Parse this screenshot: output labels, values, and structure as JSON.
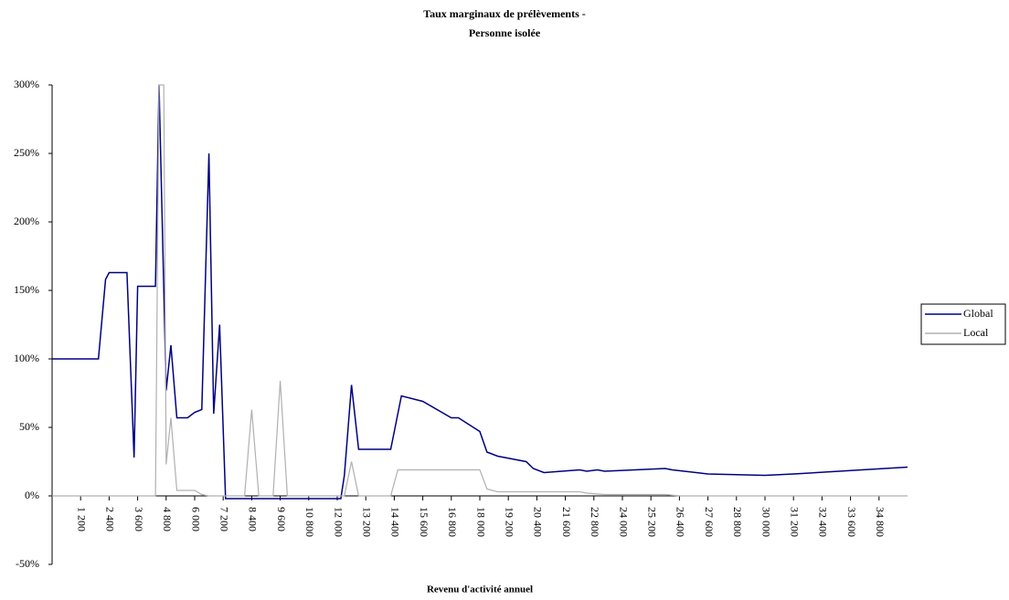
{
  "chart_data": {
    "type": "line",
    "title": "Taux marginaux de prélèvements -",
    "subtitle": "Personne isolée",
    "x_label": "Revenu d'activité annuel",
    "xlim": [
      0,
      36000
    ],
    "ylim": [
      -50,
      300
    ],
    "xticks": [
      {
        "value": 1200,
        "label": "1 200"
      },
      {
        "value": 2400,
        "label": "2 400"
      },
      {
        "value": 3600,
        "label": "3 600"
      },
      {
        "value": 4800,
        "label": "4 800"
      },
      {
        "value": 6000,
        "label": "6 000"
      },
      {
        "value": 7200,
        "label": "7 200"
      },
      {
        "value": 8400,
        "label": "8 400"
      },
      {
        "value": 9600,
        "label": "9 600"
      },
      {
        "value": 10800,
        "label": "10 800"
      },
      {
        "value": 12000,
        "label": "12 000"
      },
      {
        "value": 13200,
        "label": "13 200"
      },
      {
        "value": 14400,
        "label": "14 400"
      },
      {
        "value": 15600,
        "label": "15 600"
      },
      {
        "value": 16800,
        "label": "16 800"
      },
      {
        "value": 18000,
        "label": "18 000"
      },
      {
        "value": 19200,
        "label": "19 200"
      },
      {
        "value": 20400,
        "label": "20 400"
      },
      {
        "value": 21600,
        "label": "21 600"
      },
      {
        "value": 22800,
        "label": "22 800"
      },
      {
        "value": 24000,
        "label": "24 000"
      },
      {
        "value": 25200,
        "label": "25 200"
      },
      {
        "value": 26400,
        "label": "26 400"
      },
      {
        "value": 27600,
        "label": "27 600"
      },
      {
        "value": 28800,
        "label": "28 800"
      },
      {
        "value": 30000,
        "label": "30 000"
      },
      {
        "value": 31200,
        "label": "31 200"
      },
      {
        "value": 32400,
        "label": "32 400"
      },
      {
        "value": 33600,
        "label": "33 600"
      },
      {
        "value": 34800,
        "label": "34 800"
      }
    ],
    "yticks": [
      {
        "value": -50,
        "label": "-50%"
      },
      {
        "value": 0,
        "label": "0%"
      },
      {
        "value": 50,
        "label": "50%"
      },
      {
        "value": 100,
        "label": "100%"
      },
      {
        "value": 150,
        "label": "150%"
      },
      {
        "value": 200,
        "label": "200%"
      },
      {
        "value": 250,
        "label": "250%"
      },
      {
        "value": 300,
        "label": "300%"
      }
    ],
    "legend": "right",
    "series": [
      {
        "name": "Global",
        "color": "#000080",
        "x": [
          0,
          1950,
          2250,
          2400,
          3150,
          3450,
          3600,
          4350,
          4500,
          4800,
          5000,
          5250,
          5700,
          6000,
          6300,
          6600,
          6800,
          7050,
          7300,
          12150,
          12300,
          12600,
          12900,
          14250,
          14700,
          15600,
          16800,
          17100,
          18000,
          18300,
          18750,
          19950,
          20250,
          20700,
          22200,
          22500,
          22950,
          23250,
          25800,
          26100,
          27600,
          30000,
          31200,
          36000
        ],
        "values": [
          100,
          100,
          158,
          163,
          163,
          28,
          153,
          153,
          300,
          77,
          110,
          57,
          57,
          61,
          63,
          250,
          60,
          125,
          -2,
          -2,
          15,
          81,
          34,
          34,
          73,
          69,
          57,
          57,
          47,
          32,
          29,
          25,
          20,
          17,
          19,
          18,
          19,
          18,
          20,
          19,
          16,
          15,
          16,
          21
        ]
      },
      {
        "name": "Local",
        "color": "#b0b0b0",
        "x": [
          0,
          4350,
          4500,
          4700,
          4800,
          5000,
          5250,
          6000,
          6300,
          6600,
          8100,
          8400,
          8700,
          9300,
          9600,
          9900,
          12300,
          12600,
          12900,
          14250,
          14550,
          18000,
          18300,
          18750,
          20000,
          22200,
          22500,
          23250,
          25800,
          26400,
          36000
        ],
        "values": [
          0,
          0,
          300,
          300,
          23,
          57,
          4,
          4,
          1,
          0,
          0,
          63,
          0,
          0,
          84,
          0,
          0,
          25,
          0,
          0,
          19,
          19,
          5,
          3,
          3,
          3,
          2,
          1,
          1,
          0,
          0
        ]
      }
    ]
  }
}
